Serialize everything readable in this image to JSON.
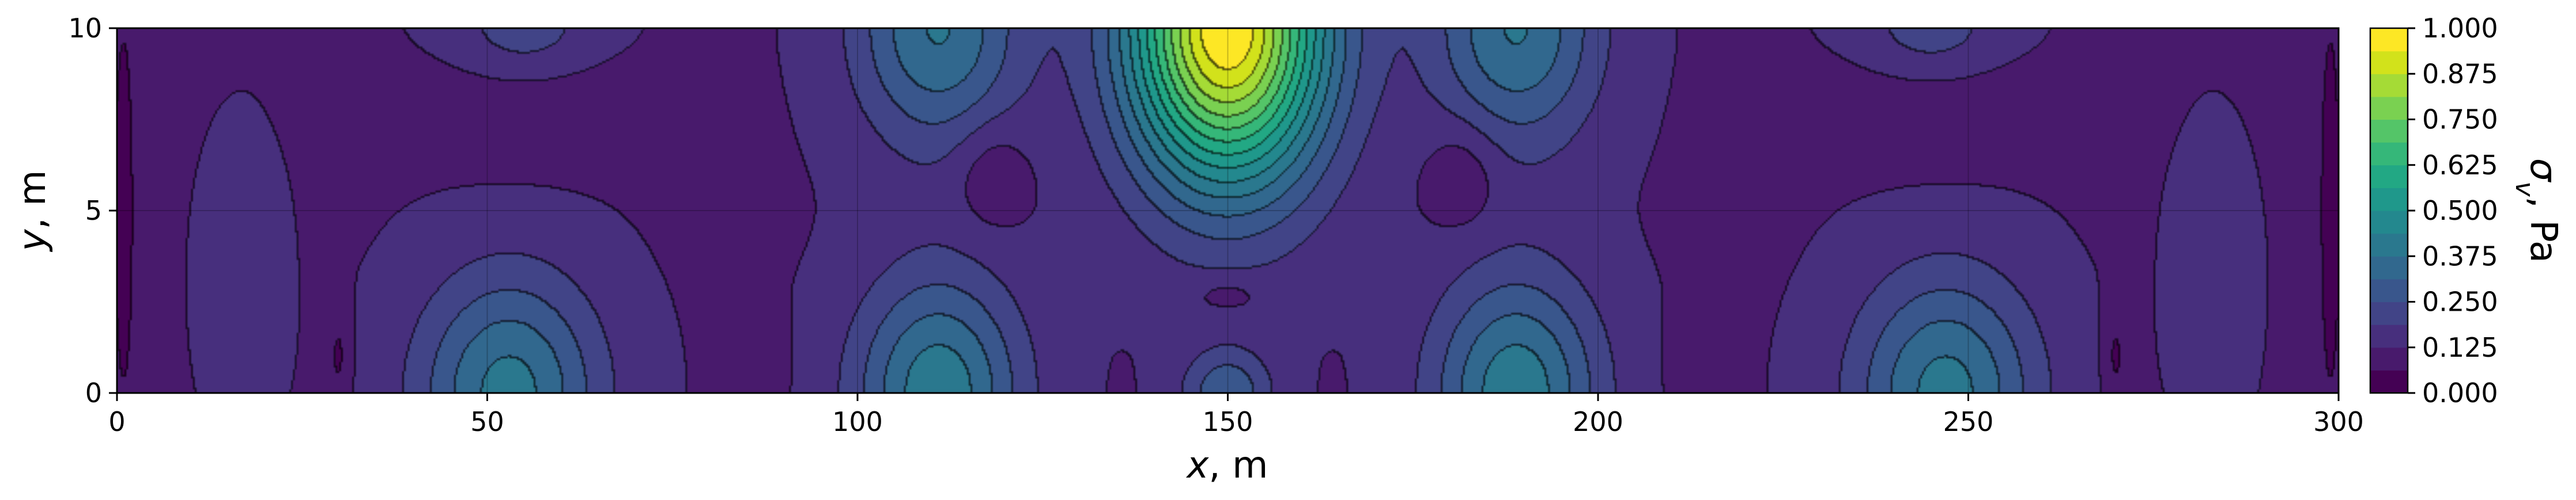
{
  "chart_data": {
    "type": "heatmap",
    "subtype": "filled-contour",
    "colormap": "viridis",
    "xlabel_symbol": "x",
    "xlabel_unit": ", m",
    "ylabel_symbol": "y",
    "ylabel_unit": ", m",
    "xlim": [
      0,
      300
    ],
    "ylim": [
      0,
      10
    ],
    "x_ticks": [
      0,
      50,
      100,
      150,
      200,
      250,
      300
    ],
    "y_ticks": [
      0,
      5,
      10
    ],
    "grid": true,
    "colorbar": {
      "label_symbol": "σ",
      "label_subscript": "v",
      "label_unit": ", Pa",
      "levels": [
        0.0,
        0.0625,
        0.125,
        0.1875,
        0.25,
        0.3125,
        0.375,
        0.4375,
        0.5,
        0.5625,
        0.625,
        0.6875,
        0.75,
        0.8125,
        0.875,
        0.9375,
        1.0
      ],
      "tick_values": [
        0.0,
        0.125,
        0.25,
        0.375,
        0.5,
        0.625,
        0.75,
        0.875,
        1.0
      ],
      "tick_labels": [
        "0.000",
        "0.125",
        "0.250",
        "0.375",
        "0.500",
        "0.625",
        "0.750",
        "0.875",
        "1.000"
      ],
      "colors": [
        "#440154",
        "#481a6c",
        "#472f7d",
        "#414487",
        "#39568c",
        "#31688e",
        "#2a788e",
        "#23888e",
        "#1f988b",
        "#22a884",
        "#35b779",
        "#54c568",
        "#7ad151",
        "#a5db36",
        "#d2e21b",
        "#fde725"
      ]
    },
    "features": [
      {
        "x": 150,
        "y": 10,
        "value": 1.0,
        "sx": 13,
        "sy": 4.2
      },
      {
        "x": 150,
        "y": 0,
        "value": 0.3,
        "sx": 6,
        "sy": 1.2
      },
      {
        "x": 53,
        "y": 0,
        "value": 0.4,
        "sx": 12,
        "sy": 3.2
      },
      {
        "x": 111,
        "y": 0,
        "value": 0.42,
        "sx": 11,
        "sy": 3.2
      },
      {
        "x": 189,
        "y": 0,
        "value": 0.42,
        "sx": 11,
        "sy": 3.2
      },
      {
        "x": 247,
        "y": 0,
        "value": 0.4,
        "sx": 12,
        "sy": 3.2
      },
      {
        "x": 111,
        "y": 10,
        "value": 0.38,
        "sx": 11,
        "sy": 3.2
      },
      {
        "x": 189,
        "y": 10,
        "value": 0.38,
        "sx": 11,
        "sy": 3.2
      },
      {
        "x": 55,
        "y": 10,
        "value": 0.22,
        "sx": 10,
        "sy": 2.0
      },
      {
        "x": 245,
        "y": 10,
        "value": 0.22,
        "sx": 10,
        "sy": 2.0
      },
      {
        "x": 17,
        "y": 3,
        "value": 0.17,
        "sx": 5,
        "sy": 3.5
      },
      {
        "x": 283,
        "y": 3,
        "value": 0.17,
        "sx": 5,
        "sy": 3.5
      }
    ],
    "background_value": 0.12,
    "lows": [
      {
        "x": 55,
        "y": 7.8,
        "sx": 16,
        "sy": 1.4,
        "depth": 0.07
      },
      {
        "x": 245,
        "y": 7.8,
        "sx": 16,
        "sy": 1.4,
        "depth": 0.07
      },
      {
        "x": 118,
        "y": 6.0,
        "sx": 5,
        "sy": 1.5,
        "depth": 0.07
      },
      {
        "x": 182,
        "y": 6.0,
        "sx": 5,
        "sy": 1.5,
        "depth": 0.07
      },
      {
        "x": 150,
        "y": 2.7,
        "sx": 5,
        "sy": 0.5,
        "depth": 0.05
      },
      {
        "x": 30,
        "y": 1.0,
        "sx": 1.5,
        "sy": 1.5,
        "depth": 0.07
      },
      {
        "x": 270,
        "y": 1.0,
        "sx": 1.5,
        "sy": 1.5,
        "depth": 0.07
      },
      {
        "x": 89,
        "y": 0.8,
        "sx": 1.5,
        "sy": 1.3,
        "depth": 0.06
      },
      {
        "x": 211,
        "y": 0.8,
        "sx": 1.5,
        "sy": 1.3,
        "depth": 0.06
      },
      {
        "x": 1,
        "y": 5,
        "sx": 2,
        "sy": 8,
        "depth": 0.08
      },
      {
        "x": 299,
        "y": 5,
        "sx": 2,
        "sy": 8,
        "depth": 0.08
      }
    ]
  }
}
